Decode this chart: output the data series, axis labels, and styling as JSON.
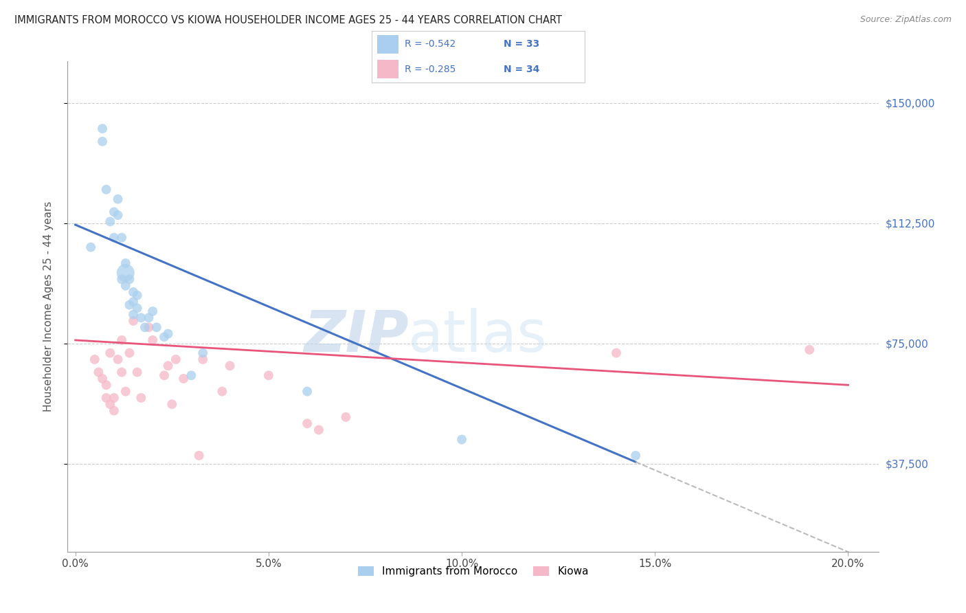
{
  "title": "IMMIGRANTS FROM MOROCCO VS KIOWA HOUSEHOLDER INCOME AGES 25 - 44 YEARS CORRELATION CHART",
  "source": "Source: ZipAtlas.com",
  "ylabel": "Householder Income Ages 25 - 44 years",
  "ytick_labels": [
    "$37,500",
    "$75,000",
    "$112,500",
    "$150,000"
  ],
  "ytick_vals": [
    37500,
    75000,
    112500,
    150000
  ],
  "legend_label1": "Immigrants from Morocco",
  "legend_label2": "Kiowa",
  "legend_R1": "-0.542",
  "legend_N1": "33",
  "legend_R2": "-0.285",
  "legend_N2": "34",
  "color_blue": "#aacfee",
  "color_pink": "#f5b8c8",
  "line_color_blue": "#4472c4",
  "line_color_pink": "#e8547a",
  "line_color_dash": "#bbbbbb",
  "watermark_zip": "ZIP",
  "watermark_atlas": "atlas",
  "background_color": "#ffffff",
  "grid_color": "#cccccc",
  "title_color": "#222222",
  "axis_label_color": "#555555",
  "ytick_color_right": "#4472c4",
  "blue_scatter_x": [
    0.004,
    0.007,
    0.007,
    0.008,
    0.009,
    0.01,
    0.01,
    0.011,
    0.011,
    0.012,
    0.012,
    0.013,
    0.013,
    0.013,
    0.014,
    0.014,
    0.015,
    0.015,
    0.015,
    0.016,
    0.016,
    0.017,
    0.018,
    0.019,
    0.02,
    0.021,
    0.023,
    0.024,
    0.03,
    0.033,
    0.06,
    0.1,
    0.145
  ],
  "blue_scatter_y": [
    105000,
    142000,
    138000,
    123000,
    113000,
    116000,
    108000,
    120000,
    115000,
    108000,
    95000,
    100000,
    97000,
    93000,
    95000,
    87000,
    91000,
    88000,
    84000,
    86000,
    90000,
    83000,
    80000,
    83000,
    85000,
    80000,
    77000,
    78000,
    65000,
    72000,
    60000,
    45000,
    40000
  ],
  "blue_scatter_sizes": [
    100,
    100,
    100,
    100,
    100,
    100,
    100,
    100,
    100,
    100,
    100,
    100,
    350,
    100,
    100,
    100,
    100,
    100,
    100,
    100,
    100,
    100,
    100,
    100,
    100,
    100,
    100,
    100,
    100,
    100,
    100,
    100,
    100
  ],
  "pink_scatter_x": [
    0.005,
    0.006,
    0.007,
    0.008,
    0.008,
    0.009,
    0.009,
    0.01,
    0.01,
    0.011,
    0.012,
    0.012,
    0.013,
    0.014,
    0.015,
    0.016,
    0.017,
    0.019,
    0.02,
    0.023,
    0.024,
    0.025,
    0.026,
    0.028,
    0.032,
    0.033,
    0.038,
    0.04,
    0.05,
    0.06,
    0.063,
    0.07,
    0.14,
    0.19
  ],
  "pink_scatter_y": [
    70000,
    66000,
    64000,
    58000,
    62000,
    56000,
    72000,
    58000,
    54000,
    70000,
    76000,
    66000,
    60000,
    72000,
    82000,
    66000,
    58000,
    80000,
    76000,
    65000,
    68000,
    56000,
    70000,
    64000,
    40000,
    70000,
    60000,
    68000,
    65000,
    50000,
    48000,
    52000,
    72000,
    73000
  ],
  "pink_scatter_sizes": [
    100,
    100,
    100,
    100,
    100,
    100,
    100,
    100,
    100,
    100,
    100,
    100,
    100,
    100,
    100,
    100,
    100,
    100,
    100,
    100,
    100,
    100,
    100,
    100,
    100,
    100,
    100,
    100,
    100,
    100,
    100,
    100,
    100,
    100
  ],
  "blue_line_x0": 0.0,
  "blue_line_y0": 112000,
  "blue_line_x1": 0.145,
  "blue_line_y1": 38000,
  "pink_line_x0": 0.0,
  "pink_line_y0": 76000,
  "pink_line_x1": 0.2,
  "pink_line_y1": 62000,
  "dash_line_x0": 0.145,
  "dash_line_x1": 0.205,
  "xlim": [
    -0.002,
    0.208
  ],
  "ylim": [
    10000,
    163000
  ],
  "xtick_vals": [
    0.0,
    0.05,
    0.1,
    0.15,
    0.2
  ],
  "xtick_labels": [
    "0.0%",
    "5.0%",
    "10.0%",
    "15.0%",
    "20.0%"
  ],
  "figsize": [
    14.06,
    8.92
  ],
  "dpi": 100
}
